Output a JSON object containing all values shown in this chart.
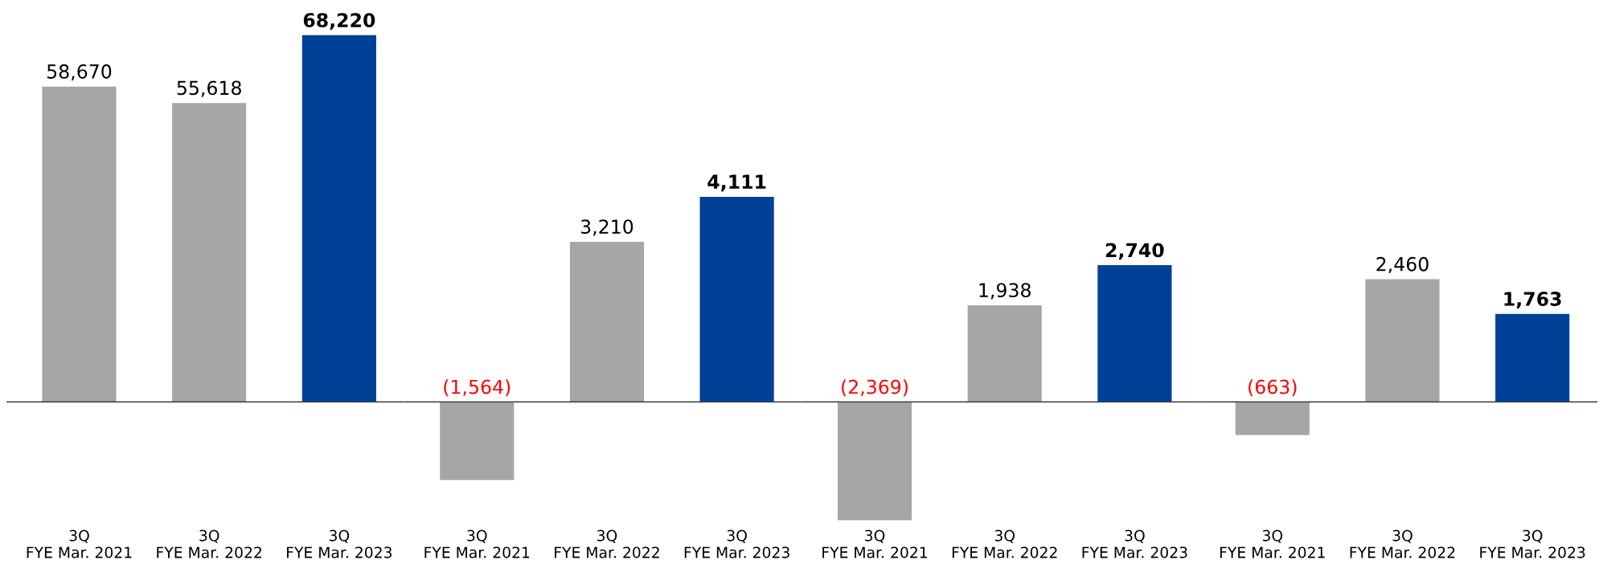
{
  "chart_data": [
    {
      "type": "bar",
      "categories": [
        "3Q\nFYE Mar. 2021",
        "3Q\nFYE Mar. 2022",
        "3Q\nFYE Mar. 2023"
      ],
      "values": [
        58670,
        55618,
        68220
      ],
      "colors": [
        "#a6a6a6",
        "#a6a6a6",
        "#004097"
      ],
      "value_labels": [
        "58,670",
        "55,618",
        "68,220"
      ]
    },
    {
      "type": "bar",
      "categories": [
        "3Q\nFYE Mar. 2021",
        "3Q\nFYE Mar. 2022",
        "3Q\nFYE Mar. 2023"
      ],
      "values": [
        -1564,
        3210,
        4111
      ],
      "colors": [
        "#a6a6a6",
        "#a6a6a6",
        "#004097"
      ],
      "value_labels": [
        "(1,564)",
        "3,210",
        "4,111"
      ]
    },
    {
      "type": "bar",
      "categories": [
        "3Q\nFYE Mar. 2021",
        "3Q\nFYE Mar. 2022",
        "3Q\nFYE Mar. 2023"
      ],
      "values": [
        -2369,
        1938,
        2740
      ],
      "colors": [
        "#a6a6a6",
        "#a6a6a6",
        "#004097"
      ],
      "value_labels": [
        "(2,369)",
        "1,938",
        "2,740"
      ]
    },
    {
      "type": "bar",
      "categories": [
        "3Q\nFYE Mar. 2021",
        "3Q\nFYE Mar. 2022",
        "3Q\nFYE Mar. 2023"
      ],
      "values": [
        -663,
        2460,
        1763
      ],
      "colors": [
        "#a6a6a6",
        "#a6a6a6",
        "#004097"
      ],
      "value_labels": [
        "(663)",
        "2,460",
        "1,763"
      ]
    }
  ]
}
